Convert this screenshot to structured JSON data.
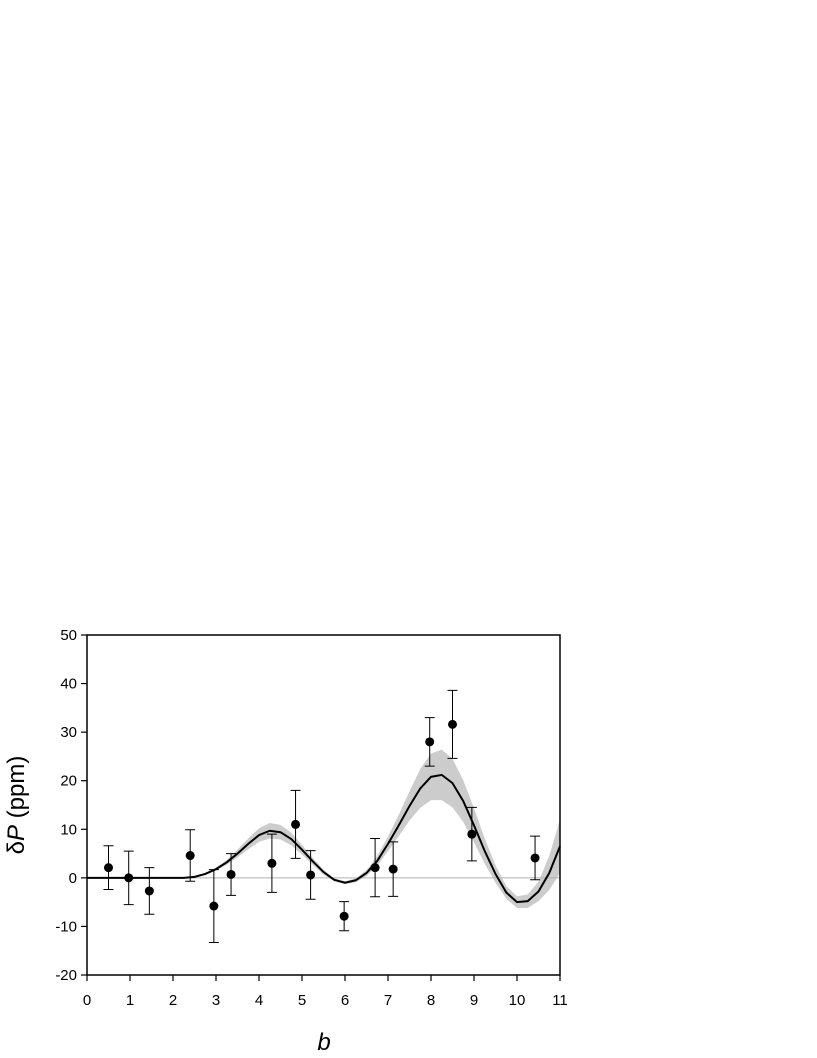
{
  "chart_data": {
    "type": "scatter",
    "x_label": "b",
    "y_label": [
      "δ",
      "P",
      " (ppm)"
    ],
    "xlim": [
      0,
      11
    ],
    "ylim": [
      -20,
      50
    ],
    "xticks": [
      0,
      1,
      2,
      3,
      4,
      5,
      6,
      7,
      8,
      9,
      10,
      11
    ],
    "yticks": [
      -20,
      -10,
      0,
      10,
      20,
      30,
      40,
      50
    ],
    "zero_line": true,
    "points": {
      "color": "#000000",
      "x": [
        0.5,
        0.97,
        1.45,
        2.4,
        2.95,
        3.35,
        4.3,
        4.85,
        5.2,
        5.98,
        6.7,
        7.12,
        7.97,
        8.5,
        8.95,
        10.42
      ],
      "values": [
        2.1,
        0,
        -2.7,
        4.6,
        -5.8,
        0.7,
        3,
        11,
        0.6,
        -7.9,
        2.1,
        1.8,
        28,
        31.6,
        9,
        4.1
      ],
      "errors": [
        4.5,
        5.5,
        4.8,
        5.3,
        7.5,
        4.3,
        6,
        7,
        5,
        3,
        6,
        5.6,
        5,
        7,
        5.5,
        4.5
      ]
    },
    "fit": {
      "color": "#000000",
      "band_color": "#cccccc",
      "x": [
        0,
        0.25,
        0.5,
        0.75,
        1,
        1.25,
        1.5,
        1.75,
        2,
        2.25,
        2.5,
        2.75,
        3,
        3.25,
        3.5,
        3.75,
        4,
        4.25,
        4.5,
        4.75,
        5,
        5.25,
        5.5,
        5.75,
        6,
        6.25,
        6.5,
        6.75,
        7,
        7.25,
        7.5,
        7.75,
        8,
        8.25,
        8.5,
        8.75,
        9,
        9.25,
        9.5,
        9.75,
        10,
        10.25,
        10.5,
        10.75,
        11
      ],
      "values": [
        0,
        0,
        0,
        0,
        0,
        0,
        0,
        0,
        0,
        0,
        0.2,
        0.8,
        1.8,
        3.2,
        5.0,
        7.0,
        8.8,
        9.7,
        9.4,
        8.0,
        5.8,
        3.4,
        1.2,
        -0.4,
        -1.0,
        -0.5,
        1.0,
        3.5,
        7.0,
        10.8,
        14.8,
        18.4,
        20.8,
        21.2,
        19.5,
        15.8,
        10.8,
        5.5,
        0.8,
        -3.0,
        -5.0,
        -4.8,
        -2.8,
        1.0,
        6.5
      ],
      "lower": [
        0,
        0,
        0,
        0,
        0,
        0,
        0,
        0,
        0,
        0,
        0.1,
        0.6,
        1.5,
        2.7,
        4.2,
        5.9,
        7.4,
        8.1,
        7.9,
        6.7,
        4.8,
        2.7,
        0.7,
        -0.7,
        -1.3,
        -0.9,
        0.4,
        2.5,
        5.5,
        8.6,
        11.8,
        14.4,
        16.0,
        16.0,
        14.5,
        11.5,
        7.3,
        2.9,
        -1.0,
        -4.3,
        -6.2,
        -6.2,
        -4.8,
        -2.5,
        1.0
      ],
      "upper": [
        0,
        0,
        0,
        0,
        0,
        0,
        0,
        0,
        0,
        0,
        0.3,
        1.0,
        2.1,
        3.7,
        5.8,
        8.1,
        10.2,
        11.3,
        10.9,
        9.3,
        6.8,
        4.1,
        1.7,
        -0.1,
        -0.7,
        -0.1,
        1.6,
        4.5,
        8.5,
        13.0,
        17.8,
        22.4,
        25.6,
        26.4,
        24.5,
        20.1,
        14.3,
        8.1,
        2.6,
        -1.7,
        -3.8,
        -3.4,
        -0.8,
        4.5,
        12.0
      ]
    }
  }
}
